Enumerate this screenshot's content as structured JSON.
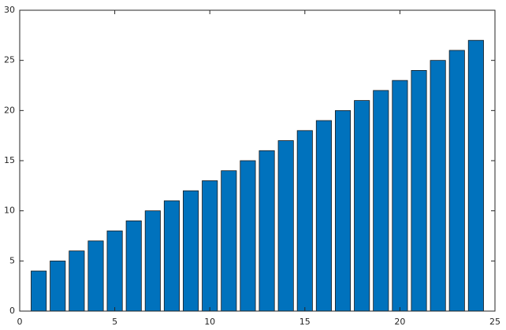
{
  "chart_data": {
    "type": "bar",
    "x": [
      1,
      2,
      3,
      4,
      5,
      6,
      7,
      8,
      9,
      10,
      11,
      12,
      13,
      14,
      15,
      16,
      17,
      18,
      19,
      20,
      21,
      22,
      23,
      24
    ],
    "values": [
      4,
      5,
      6,
      7,
      8,
      9,
      10,
      11,
      12,
      13,
      14,
      15,
      16,
      17,
      18,
      19,
      20,
      21,
      22,
      23,
      24,
      25,
      26,
      27
    ],
    "color": "#0072bd",
    "xlim": [
      0,
      25
    ],
    "xticks": [
      0,
      5,
      10,
      15,
      20,
      25
    ],
    "ylim": [
      0,
      30
    ],
    "yticks": [
      0,
      5,
      10,
      15,
      20,
      25,
      30
    ],
    "grid": false
  }
}
